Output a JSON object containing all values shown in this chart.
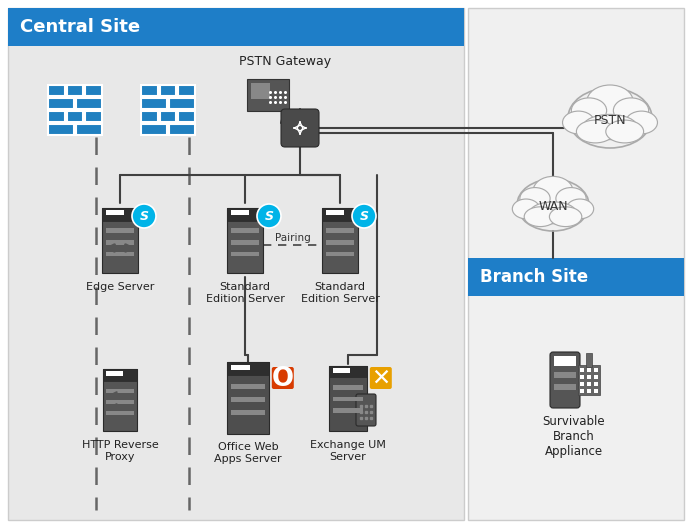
{
  "title": "Central Site",
  "branch_title": "Branch Site",
  "header_color": "#1e7ec8",
  "header_text_color": "#ffffff",
  "central_bg": "#e8e8e8",
  "branch_bg": "#f0f0f0",
  "server_color": "#555555",
  "server_dark": "#3a3a3a",
  "fw_color": "#2080c0",
  "skype_blue": "#00b4e8",
  "office_red": "#d83b01",
  "exchange_orange": "#e8a000",
  "line_color": "#404040",
  "cloud_fc": "#f8f8f8",
  "cloud_ec": "#aaaaaa",
  "pstn_label": "PSTN Gateway",
  "wan_label": "WAN",
  "pstn_cloud_label": "PSTN",
  "edge_label": "Edge Server",
  "std1_label": "Standard\nEdition Server",
  "std2_label": "Standard\nEdition Server",
  "http_label": "HTTP Reverse\nProxy",
  "owa_label": "Office Web\nApps Server",
  "exchange_label": "Exchange UM\nServer",
  "branch_label": "Survivable\nBranch\nAppliance",
  "pairing_label": "Pairing",
  "figw": 6.92,
  "figh": 5.28,
  "dpi": 100
}
